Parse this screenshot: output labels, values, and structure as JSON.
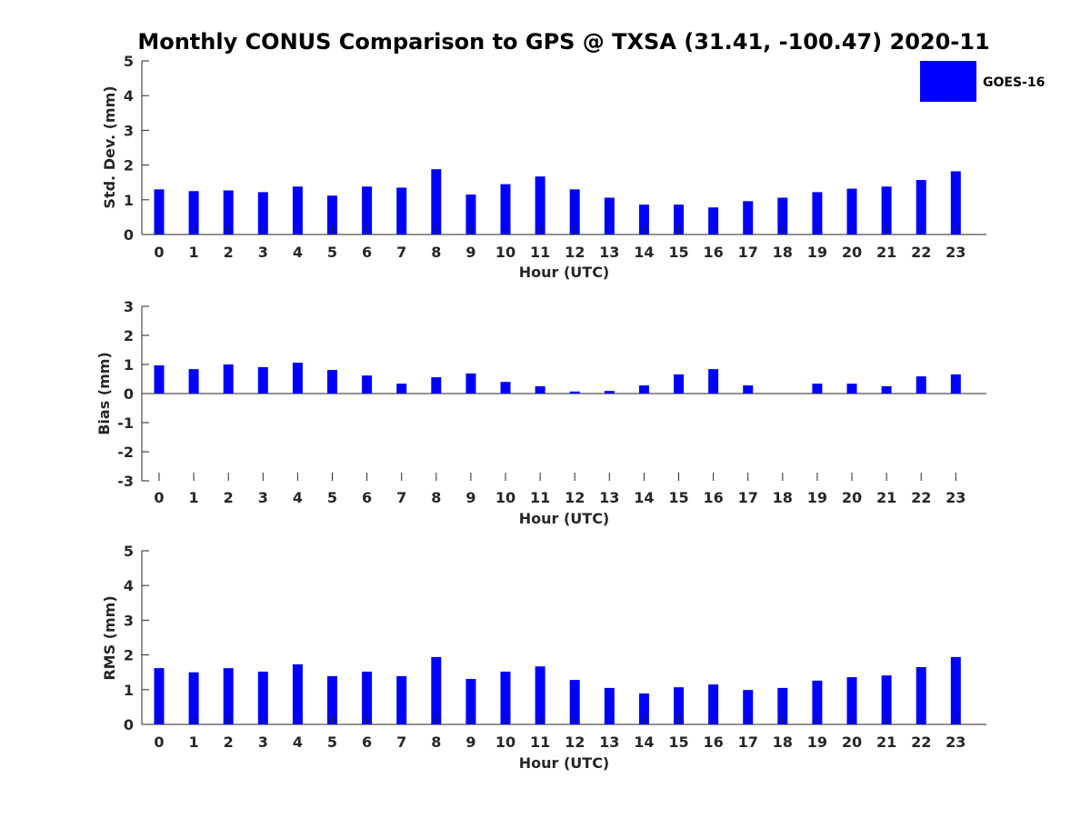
{
  "title": "Monthly CONUS Comparison to GPS @ TXSA (31.41, -100.47) 2020-11",
  "legend": {
    "label": "GOES-16",
    "color": "#0000ff",
    "location": "top-right"
  },
  "chart_data": [
    {
      "type": "bar",
      "name": "std-dev",
      "ylabel": "Std. Dev. (mm)",
      "xlabel": "Hour (UTC)",
      "ylim": [
        0,
        5
      ],
      "yticks": [
        "0",
        "1",
        "2",
        "3",
        "4",
        "5"
      ],
      "categories": [
        "0",
        "1",
        "2",
        "3",
        "4",
        "5",
        "6",
        "7",
        "8",
        "9",
        "10",
        "11",
        "12",
        "13",
        "14",
        "15",
        "16",
        "17",
        "18",
        "19",
        "20",
        "21",
        "22",
        "23"
      ],
      "series": [
        {
          "name": "GOES-16",
          "values": [
            1.3,
            1.25,
            1.27,
            1.22,
            1.38,
            1.12,
            1.38,
            1.35,
            1.88,
            1.15,
            1.45,
            1.67,
            1.3,
            1.06,
            0.86,
            0.86,
            0.78,
            0.96,
            1.06,
            1.22,
            1.32,
            1.38,
            1.57,
            1.82
          ]
        }
      ]
    },
    {
      "type": "bar",
      "name": "bias",
      "ylabel": "Bias (mm)",
      "xlabel": "Hour (UTC)",
      "ylim": [
        -3,
        3
      ],
      "yticks": [
        "-3",
        "-2",
        "-1",
        "0",
        "1",
        "2",
        "3"
      ],
      "categories": [
        "0",
        "1",
        "2",
        "3",
        "4",
        "5",
        "6",
        "7",
        "8",
        "9",
        "10",
        "11",
        "12",
        "13",
        "14",
        "15",
        "16",
        "17",
        "18",
        "19",
        "20",
        "21",
        "22",
        "23"
      ],
      "series": [
        {
          "name": "GOES-16",
          "values": [
            0.97,
            0.84,
            1.0,
            0.91,
            1.06,
            0.81,
            0.62,
            0.34,
            0.56,
            0.69,
            0.4,
            0.25,
            0.07,
            0.09,
            0.28,
            0.66,
            0.84,
            0.28,
            0.0,
            0.34,
            0.34,
            0.25,
            0.59,
            0.66
          ]
        }
      ]
    },
    {
      "type": "bar",
      "name": "rms",
      "ylabel": "RMS (mm)",
      "xlabel": "Hour (UTC)",
      "ylim": [
        0,
        5
      ],
      "yticks": [
        "0",
        "1",
        "2",
        "3",
        "4",
        "5"
      ],
      "categories": [
        "0",
        "1",
        "2",
        "3",
        "4",
        "5",
        "6",
        "7",
        "8",
        "9",
        "10",
        "11",
        "12",
        "13",
        "14",
        "15",
        "16",
        "17",
        "18",
        "19",
        "20",
        "21",
        "22",
        "23"
      ],
      "series": [
        {
          "name": "GOES-16",
          "values": [
            1.62,
            1.5,
            1.62,
            1.52,
            1.73,
            1.39,
            1.52,
            1.39,
            1.94,
            1.31,
            1.52,
            1.67,
            1.28,
            1.05,
            0.89,
            1.07,
            1.15,
            0.99,
            1.05,
            1.26,
            1.36,
            1.41,
            1.65,
            1.94
          ]
        }
      ]
    }
  ]
}
